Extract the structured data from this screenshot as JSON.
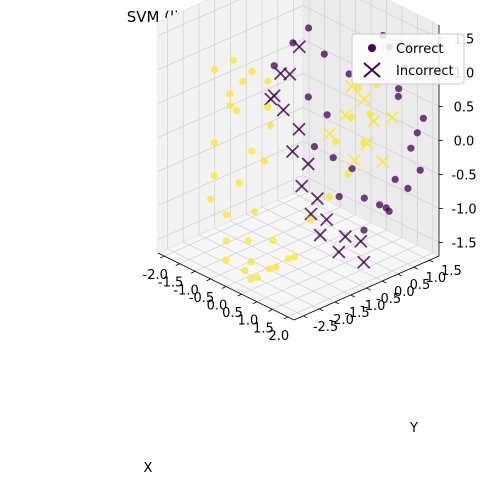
{
  "chart_data": {
    "type": "scatter3d",
    "title": "SVM (linear Kernel) Predictions",
    "xlabel": "X",
    "ylabel": "Y",
    "zlabel": "",
    "xlim": [
      -2.2,
      2.2
    ],
    "ylim": [
      -2.8,
      1.8
    ],
    "zlim": [
      -1.7,
      1.7
    ],
    "xticks": [
      "-2.0",
      "-1.5",
      "-1.0",
      "-0.5",
      "0.0",
      "0.5",
      "1.0",
      "1.5",
      "2.0"
    ],
    "yticks": [
      "-2.5",
      "-2.0",
      "-1.5",
      "-1.0",
      "-0.5",
      "0.0",
      "0.5",
      "1.0",
      "1.5"
    ],
    "zticks": [
      "-1.5",
      "-1.0",
      "-0.5",
      "0.0",
      "0.5",
      "1.0",
      "1.5"
    ],
    "colormap": "viridis",
    "class_colors": {
      "0": "#440154",
      "1": "#fde725"
    },
    "grid": true,
    "legend_position": "top-right",
    "legend": [
      {
        "label": "Correct",
        "marker": "circle"
      },
      {
        "label": "Incorrect",
        "marker": "x"
      }
    ],
    "points_note_style": "each point: [x, y, z, class (0=purple,1=yellow), correct (1) or incorrect (0)]",
    "points": [
      [
        -1.6,
        -1.0,
        0.9,
        1,
        1
      ],
      [
        -1.4,
        -0.6,
        0.7,
        1,
        1
      ],
      [
        -1.5,
        -1.2,
        0.3,
        1,
        1
      ],
      [
        -1.3,
        -0.2,
        0.5,
        1,
        1
      ],
      [
        -1.7,
        -0.8,
        0.1,
        1,
        1
      ],
      [
        -1.2,
        -1.5,
        0.6,
        1,
        1
      ],
      [
        -1.1,
        -0.4,
        0.2,
        1,
        1
      ],
      [
        -1.4,
        -1.8,
        -0.1,
        1,
        1
      ],
      [
        -1.0,
        -1.0,
        -0.3,
        1,
        1
      ],
      [
        -0.9,
        -0.5,
        0.0,
        1,
        1
      ],
      [
        -1.2,
        -2.0,
        -0.5,
        1,
        1
      ],
      [
        -0.8,
        -1.6,
        -0.6,
        1,
        1
      ],
      [
        -0.7,
        -0.9,
        -0.4,
        1,
        1
      ],
      [
        -0.6,
        -2.2,
        -0.9,
        1,
        1
      ],
      [
        -0.5,
        -1.4,
        -1.0,
        1,
        1
      ],
      [
        -0.4,
        -2.4,
        -1.2,
        1,
        1
      ],
      [
        -0.3,
        -1.8,
        -1.3,
        1,
        1
      ],
      [
        -0.2,
        -2.6,
        -1.4,
        1,
        1
      ],
      [
        0.0,
        -2.0,
        -1.5,
        1,
        1
      ],
      [
        0.2,
        -2.4,
        -1.5,
        1,
        1
      ],
      [
        0.4,
        -2.2,
        -1.6,
        1,
        1
      ],
      [
        0.6,
        -2.6,
        -1.5,
        1,
        1
      ],
      [
        0.8,
        -2.0,
        -1.4,
        1,
        1
      ],
      [
        1.0,
        -2.4,
        -1.3,
        1,
        1
      ],
      [
        1.2,
        -1.8,
        -1.2,
        1,
        1
      ],
      [
        1.4,
        -2.2,
        -1.1,
        1,
        1
      ],
      [
        1.1,
        -1.2,
        -0.8,
        1,
        1
      ],
      [
        1.3,
        -0.8,
        -0.5,
        1,
        1
      ],
      [
        1.5,
        -0.4,
        -0.2,
        1,
        1
      ],
      [
        1.6,
        0.0,
        0.2,
        1,
        1
      ],
      [
        1.4,
        0.4,
        0.5,
        1,
        1
      ],
      [
        1.2,
        0.8,
        0.8,
        1,
        1
      ],
      [
        1.0,
        0.2,
        0.4,
        1,
        1
      ],
      [
        0.8,
        0.6,
        0.7,
        1,
        1
      ],
      [
        0.6,
        1.0,
        0.9,
        1,
        1
      ],
      [
        0.9,
        -0.2,
        0.1,
        1,
        1
      ],
      [
        -1.9,
        -0.4,
        0.4,
        1,
        1
      ],
      [
        -1.8,
        -1.4,
        0.8,
        1,
        1
      ],
      [
        -0.9,
        -2.4,
        -0.7,
        1,
        1
      ],
      [
        0.3,
        -1.6,
        -1.2,
        1,
        1
      ],
      [
        -1.5,
        0.2,
        0.6,
        0,
        1
      ],
      [
        -1.3,
        0.6,
        0.9,
        0,
        1
      ],
      [
        -1.1,
        0.9,
        1.1,
        0,
        1
      ],
      [
        -0.9,
        1.2,
        0.7,
        0,
        1
      ],
      [
        -0.6,
        0.4,
        0.3,
        0,
        1
      ],
      [
        -0.4,
        0.8,
        0.0,
        0,
        1
      ],
      [
        -0.2,
        0.2,
        -0.3,
        0,
        1
      ],
      [
        0.0,
        0.6,
        -0.5,
        0,
        1
      ],
      [
        0.2,
        1.0,
        -0.7,
        0,
        1
      ],
      [
        0.5,
        0.3,
        -0.9,
        0,
        1
      ],
      [
        0.7,
        0.9,
        -1.0,
        0,
        1
      ],
      [
        0.9,
        1.4,
        -1.2,
        0,
        1
      ],
      [
        1.1,
        0.5,
        -1.3,
        0,
        1
      ],
      [
        1.3,
        1.1,
        -1.1,
        0,
        1
      ],
      [
        1.5,
        1.5,
        -0.8,
        0,
        1
      ],
      [
        1.7,
        0.9,
        -0.5,
        0,
        1
      ],
      [
        1.8,
        1.3,
        -0.1,
        0,
        1
      ],
      [
        1.9,
        1.6,
        0.3,
        0,
        1
      ],
      [
        1.7,
        1.0,
        0.7,
        0,
        1
      ],
      [
        1.5,
        1.4,
        1.0,
        0,
        1
      ],
      [
        1.3,
        1.7,
        1.2,
        0,
        1
      ],
      [
        1.0,
        1.2,
        1.4,
        0,
        1
      ],
      [
        0.8,
        1.6,
        1.1,
        0,
        1
      ],
      [
        1.2,
        1.5,
        0.6,
        0,
        1
      ],
      [
        1.6,
        1.7,
        0.0,
        0,
        1
      ],
      [
        2.0,
        1.4,
        -0.4,
        0,
        1
      ],
      [
        1.4,
        0.7,
        -0.9,
        0,
        1
      ],
      [
        -0.3,
        1.4,
        0.5,
        0,
        1
      ],
      [
        -1.4,
        0.1,
        0.2,
        0,
        0
      ],
      [
        -1.2,
        0.4,
        0.5,
        0,
        0
      ],
      [
        -1.0,
        0.0,
        0.1,
        0,
        0
      ],
      [
        -0.8,
        0.3,
        -0.2,
        0,
        0
      ],
      [
        -0.6,
        -0.1,
        -0.4,
        0,
        0
      ],
      [
        -0.4,
        0.2,
        -0.6,
        0,
        0
      ],
      [
        -0.2,
        -0.2,
        -0.8,
        0,
        0
      ],
      [
        0.0,
        0.1,
        -1.0,
        0,
        0
      ],
      [
        0.2,
        -0.3,
        -1.1,
        0,
        0
      ],
      [
        0.4,
        0.0,
        -1.2,
        0,
        0
      ],
      [
        0.6,
        -0.4,
        -1.3,
        0,
        0
      ],
      [
        0.8,
        0.2,
        -1.4,
        0,
        0
      ],
      [
        1.0,
        -0.2,
        -1.5,
        0,
        0
      ],
      [
        -1.3,
        0.8,
        0.8,
        0,
        0
      ],
      [
        -1.6,
        0.5,
        0.4,
        0,
        0
      ],
      [
        -1.1,
        -0.3,
        0.3,
        0,
        0
      ],
      [
        1.2,
        0.3,
        -1.4,
        0,
        0
      ],
      [
        1.5,
        0.1,
        -1.6,
        0,
        0
      ],
      [
        0.4,
        0.8,
        0.6,
        1,
        0
      ],
      [
        0.6,
        0.4,
        0.3,
        1,
        0
      ],
      [
        0.8,
        0.8,
        0.5,
        1,
        0
      ],
      [
        1.0,
        0.9,
        0.2,
        1,
        0
      ],
      [
        1.2,
        0.5,
        0.0,
        1,
        0
      ],
      [
        1.4,
        1.1,
        0.3,
        1,
        0
      ],
      [
        0.3,
        0.2,
        0.0,
        1,
        0
      ],
      [
        0.5,
        1.1,
        0.9,
        1,
        0
      ],
      [
        1.6,
        0.6,
        -0.2,
        1,
        0
      ],
      [
        0.9,
        0.4,
        -0.3,
        1,
        0
      ]
    ]
  }
}
